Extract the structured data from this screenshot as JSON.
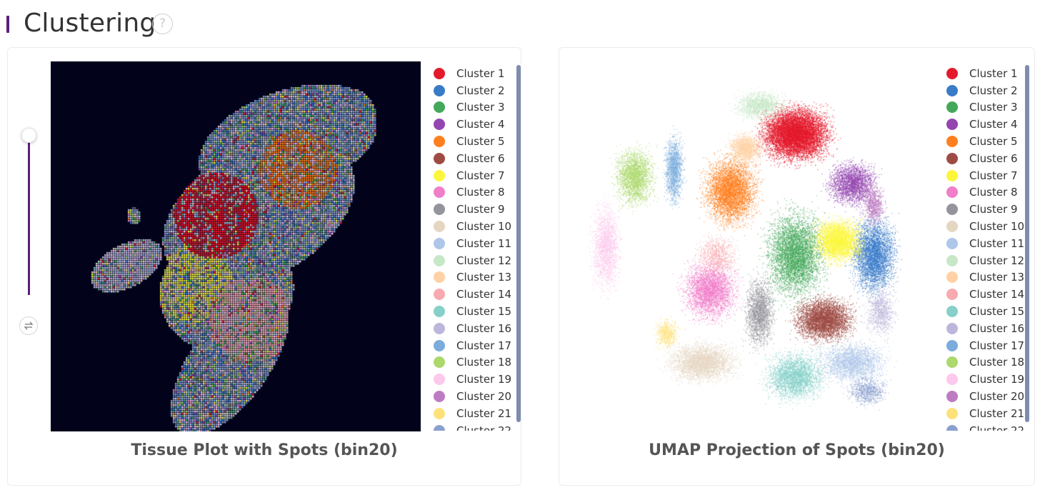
{
  "header": {
    "title": "Clustering",
    "help_glyph": "?"
  },
  "colors": {
    "accent": "#5b1f7a",
    "tissue_background": "#02031a",
    "scrollbar": "#7e8cae"
  },
  "tissue_panel": {
    "title": "Tissue Plot with Spots (bin20)",
    "zoom_slider_level": 1.0,
    "swap_icon": "swap-horizontal-icon"
  },
  "umap_panel": {
    "title": "UMAP Projection of Spots (bin20)"
  },
  "legend": {
    "items": [
      {
        "label": "Cluster 1",
        "color": "#e31a2c"
      },
      {
        "label": "Cluster 2",
        "color": "#3a7bc8"
      },
      {
        "label": "Cluster 3",
        "color": "#44a85a"
      },
      {
        "label": "Cluster 4",
        "color": "#9445b0"
      },
      {
        "label": "Cluster 5",
        "color": "#ff7f1e"
      },
      {
        "label": "Cluster 6",
        "color": "#9e4b44"
      },
      {
        "label": "Cluster 7",
        "color": "#fbf63a"
      },
      {
        "label": "Cluster 8",
        "color": "#f07ec9"
      },
      {
        "label": "Cluster 9",
        "color": "#94949c"
      },
      {
        "label": "Cluster 10",
        "color": "#e5d6c2"
      },
      {
        "label": "Cluster 11",
        "color": "#aec6e8"
      },
      {
        "label": "Cluster 12",
        "color": "#c7e7c7"
      },
      {
        "label": "Cluster 13",
        "color": "#ffd1a5"
      },
      {
        "label": "Cluster 14",
        "color": "#f8aab0"
      },
      {
        "label": "Cluster 15",
        "color": "#86d0c9"
      },
      {
        "label": "Cluster 16",
        "color": "#bcb7da"
      },
      {
        "label": "Cluster 17",
        "color": "#7aacdc"
      },
      {
        "label": "Cluster 18",
        "color": "#acd86e"
      },
      {
        "label": "Cluster 19",
        "color": "#fcc8ec"
      },
      {
        "label": "Cluster 20",
        "color": "#bd7cc1"
      },
      {
        "label": "Cluster 21",
        "color": "#fde17a"
      },
      {
        "label": "Cluster 22",
        "color": "#8aa0cf"
      }
    ]
  }
}
